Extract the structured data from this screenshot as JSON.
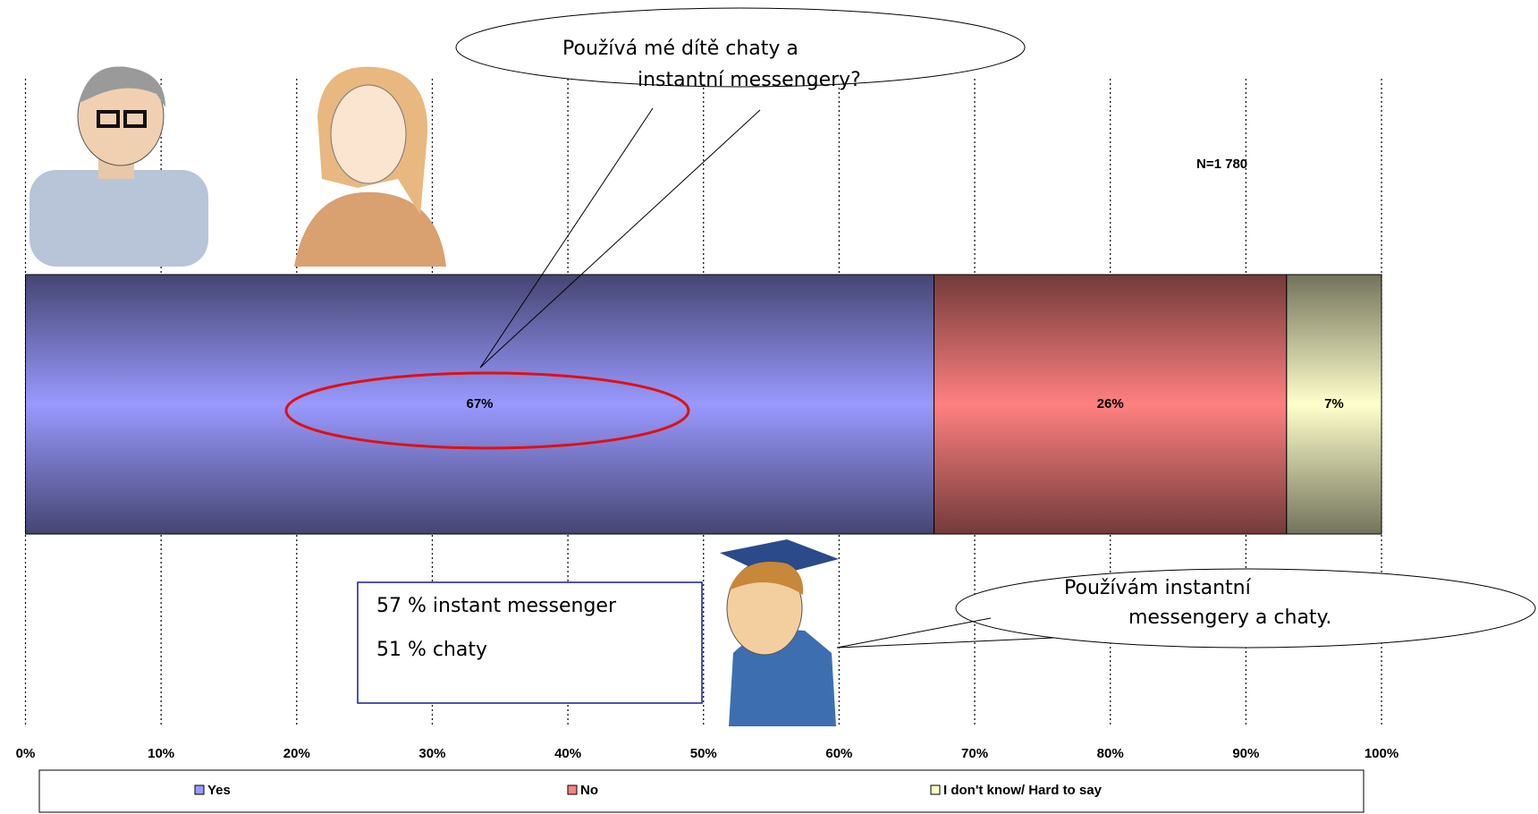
{
  "chart_data": {
    "type": "stacked-bar-horizontal",
    "series": [
      {
        "name": "Yes",
        "color": "#9999ff",
        "values": [
          67
        ],
        "value_labels": [
          "67%"
        ]
      },
      {
        "name": "No",
        "color": "#ff8080",
        "values": [
          26
        ],
        "value_labels": [
          "26%"
        ]
      },
      {
        "name": "I don't know/ Hard to say",
        "color": "#ffffcc",
        "values": [
          7
        ],
        "value_labels": [
          "7%"
        ]
      }
    ],
    "xlim": [
      0,
      100
    ],
    "xticks": [
      {
        "value": 0,
        "label": "0%"
      },
      {
        "value": 10,
        "label": "10%"
      },
      {
        "value": 20,
        "label": "20%"
      },
      {
        "value": 30,
        "label": "30%"
      },
      {
        "value": 40,
        "label": "40%"
      },
      {
        "value": 50,
        "label": "50%"
      },
      {
        "value": 60,
        "label": "60%"
      },
      {
        "value": 70,
        "label": "70%"
      },
      {
        "value": 80,
        "label": "80%"
      },
      {
        "value": 90,
        "label": "90%"
      },
      {
        "value": 100,
        "label": "100%"
      }
    ],
    "grid": true,
    "legend": "bottom",
    "annotations": {
      "sample": "N=1 780",
      "parent_question": [
        "Používá mé dítě chaty a",
        "instantní messengery?"
      ],
      "child_answer": [
        "Používám instantní",
        "messengery a chaty."
      ],
      "details": [
        "57 % instant messenger",
        "51 % chaty"
      ]
    }
  }
}
